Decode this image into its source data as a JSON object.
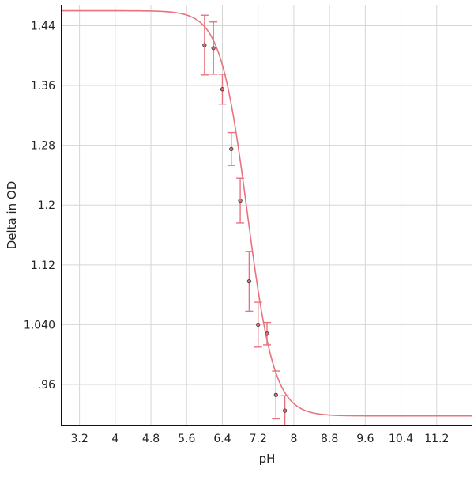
{
  "chart_data": {
    "type": "scatter",
    "xlabel": "pH",
    "ylabel": "Delta in OD",
    "xlim": [
      2.8,
      12.0
    ],
    "ylim": [
      0.905,
      1.468
    ],
    "x_ticks": [
      3.2,
      4,
      4.8,
      5.6,
      6.4,
      7.2,
      8,
      8.8,
      9.6,
      10.4,
      11.2
    ],
    "x_tick_labels": [
      "3.2",
      "4",
      "4.8",
      "5.6",
      "6.4",
      "7.2",
      "8",
      "8.8",
      "9.6",
      "10.4",
      "11.2"
    ],
    "x_grid_lines": [
      3.2,
      4,
      4.8,
      5.6,
      6.4,
      7.2,
      8,
      8.8,
      9.6,
      10.4,
      11.2
    ],
    "y_ticks": [
      0.96,
      1.04,
      1.12,
      1.2,
      1.28,
      1.36,
      1.44
    ],
    "y_tick_labels": [
      ".96",
      "1.040",
      "1.12",
      "1.2",
      "1.28",
      "1.36",
      "1.44"
    ],
    "grid": true,
    "series": [
      {
        "type": "scatter-errorbar",
        "x": [
          6.0,
          6.2,
          6.4,
          6.6,
          6.8,
          7.0,
          7.2,
          7.4,
          7.6,
          7.8
        ],
        "y": [
          1.414,
          1.41,
          1.355,
          1.275,
          1.206,
          1.098,
          1.04,
          1.028,
          0.946,
          0.925
        ],
        "yerr": [
          0.04,
          0.035,
          0.02,
          0.022,
          0.03,
          0.04,
          0.03,
          0.015,
          0.032,
          0.02
        ]
      },
      {
        "type": "line",
        "fit": "sigmoid",
        "top": 1.46,
        "bottom": 0.918,
        "midpoint": 6.96,
        "slope": 0.3
      }
    ],
    "colors": {
      "curve": "#e8737f",
      "errorbar": "#e8737f",
      "point": "#e06a7a",
      "axis": "#111111",
      "grid": "#d6d6d6"
    }
  }
}
